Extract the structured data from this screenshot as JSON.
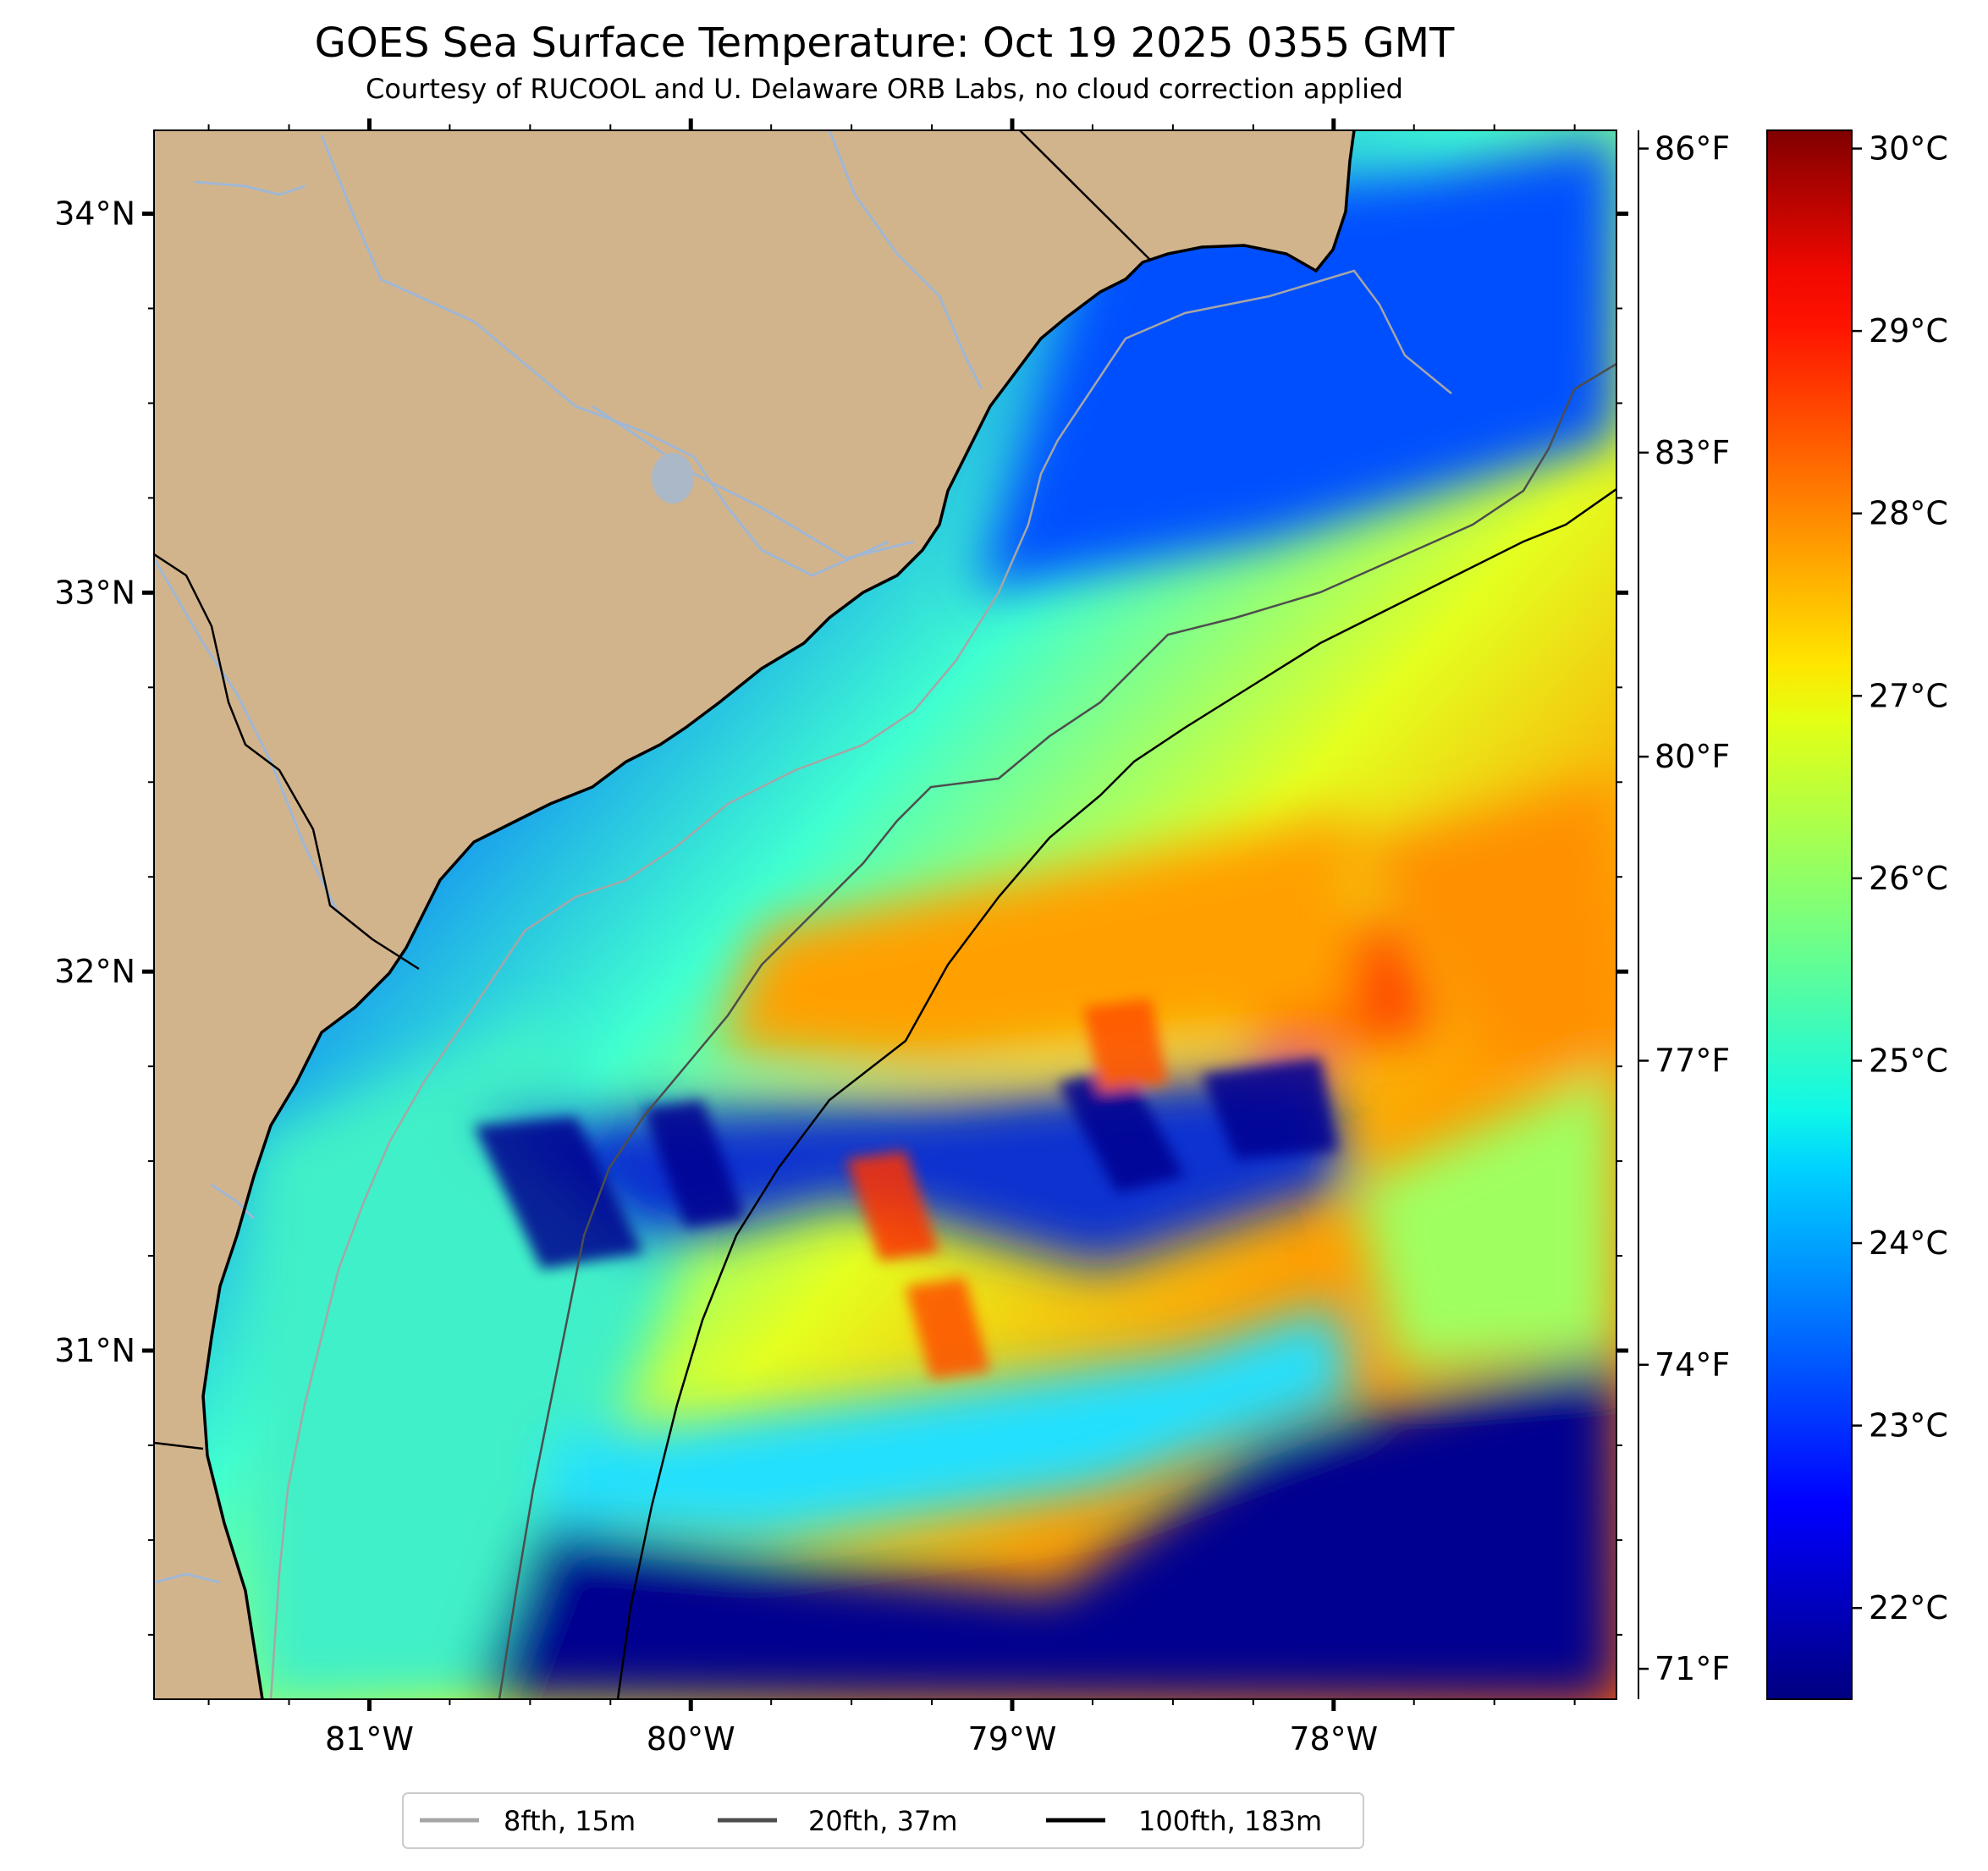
{
  "title": "GOES Sea Surface Temperature: Oct 19 2025 0355 GMT",
  "subtitle": "Courtesy of RUCOOL and U. Delaware ORB Labs, no cloud correction applied",
  "map": {
    "lon_range": [
      -81.67,
      -77.12
    ],
    "lat_range": [
      30.08,
      34.22
    ],
    "lat_ticks": [
      {
        "value": 34,
        "label": "34°N"
      },
      {
        "value": 33,
        "label": "33°N"
      },
      {
        "value": 32,
        "label": "32°N"
      },
      {
        "value": 31,
        "label": "31°N"
      }
    ],
    "lon_ticks": [
      {
        "value": -81,
        "label": "81°W"
      },
      {
        "value": -80,
        "label": "80°W"
      },
      {
        "value": -79,
        "label": "79°W"
      },
      {
        "value": -78,
        "label": "78°W"
      }
    ],
    "colors": {
      "land": "#d2b48c",
      "coast": "#000000",
      "river": "#9fb7d5",
      "no_data": "#ffffff"
    }
  },
  "fahrenheit_ticks": [
    {
      "value": 86,
      "label": "86°F"
    },
    {
      "value": 83,
      "label": "83°F"
    },
    {
      "value": 80,
      "label": "80°F"
    },
    {
      "value": 77,
      "label": "77°F"
    },
    {
      "value": 74,
      "label": "74°F"
    },
    {
      "value": 71,
      "label": "71°F"
    }
  ],
  "colorbar": {
    "range_c": [
      21.5,
      30.1
    ],
    "colormap": "jet",
    "ticks": [
      {
        "value": 30,
        "label": "30°C"
      },
      {
        "value": 29,
        "label": "29°C"
      },
      {
        "value": 28,
        "label": "28°C"
      },
      {
        "value": 27,
        "label": "27°C"
      },
      {
        "value": 26,
        "label": "26°C"
      },
      {
        "value": 25,
        "label": "25°C"
      },
      {
        "value": 24,
        "label": "24°C"
      },
      {
        "value": 23,
        "label": "23°C"
      },
      {
        "value": 22,
        "label": "22°C"
      }
    ]
  },
  "legend": [
    {
      "label": "8fth, 15m",
      "color": "#a6a6a6"
    },
    {
      "label": "20fth, 37m",
      "color": "#4d4d4d"
    },
    {
      "label": "100fth, 183m",
      "color": "#000000"
    }
  ]
}
